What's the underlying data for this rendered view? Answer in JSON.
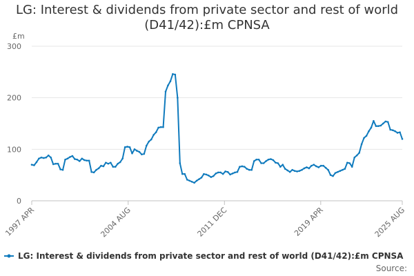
{
  "chart_data": {
    "type": "line",
    "title": "LG: Interest & dividends from private sector and rest of world (D41/42):£m CPNSA",
    "ylabel": "£m",
    "xlabel": "",
    "ylim": [
      0,
      300
    ],
    "yticks": [
      0,
      100,
      200,
      300
    ],
    "xtick_labels": [
      "1997 APR",
      "2004 AUG",
      "2011 DEC",
      "2019 APR",
      "2025 AUG"
    ],
    "grid": true,
    "legend_position": "bottom",
    "source_label": "Source:",
    "series": [
      {
        "name": "LG: Interest & dividends from private sector and rest of world (D41/42):£m CPNSA",
        "color": "#0f7abd",
        "start": "1997 Q2",
        "frequency": "quarterly",
        "values": [
          70,
          69,
          75,
          82,
          84,
          83,
          84,
          88,
          84,
          71,
          72,
          72,
          61,
          60,
          80,
          82,
          85,
          87,
          81,
          80,
          77,
          82,
          79,
          78,
          78,
          56,
          55,
          60,
          63,
          68,
          67,
          74,
          72,
          74,
          66,
          66,
          72,
          75,
          82,
          104,
          105,
          104,
          92,
          100,
          97,
          95,
          90,
          91,
          107,
          115,
          119,
          128,
          133,
          142,
          143,
          143,
          212,
          224,
          232,
          246,
          245,
          200,
          73,
          52,
          52,
          41,
          39,
          37,
          35,
          39,
          42,
          45,
          52,
          51,
          49,
          46,
          48,
          53,
          55,
          55,
          52,
          57,
          56,
          51,
          53,
          55,
          56,
          66,
          67,
          66,
          62,
          60,
          60,
          77,
          80,
          80,
          73,
          73,
          77,
          80,
          81,
          79,
          74,
          73,
          66,
          70,
          62,
          59,
          56,
          60,
          58,
          57,
          58,
          60,
          63,
          65,
          63,
          68,
          70,
          67,
          65,
          68,
          68,
          64,
          60,
          50,
          48,
          54,
          56,
          58,
          60,
          62,
          74,
          73,
          66,
          84,
          88,
          93,
          110,
          122,
          126,
          135,
          142,
          155,
          145,
          145,
          146,
          150,
          154,
          153,
          138,
          137,
          135,
          132,
          133,
          120
        ]
      }
    ]
  }
}
